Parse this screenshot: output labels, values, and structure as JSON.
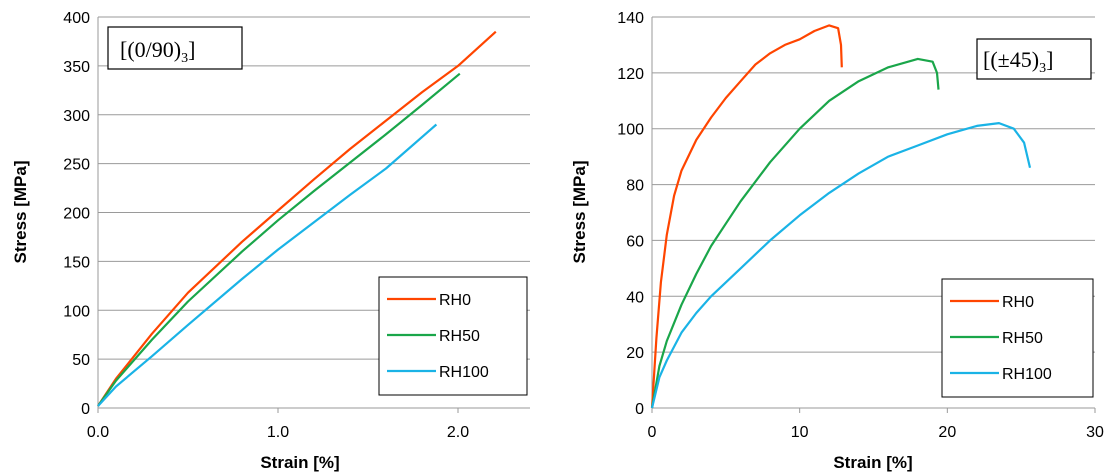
{
  "chart_data": [
    {
      "type": "line",
      "annotation": "[(0/90)",
      "annotation_sub": "3",
      "annotation_close": "]",
      "xlabel": "Strain [%]",
      "ylabel": "Stress [MPa]",
      "xlim": [
        0,
        2.4
      ],
      "ylim": [
        0,
        400
      ],
      "xticks": [
        "0.0",
        "1.0",
        "2.0"
      ],
      "xtick_values": [
        0,
        1,
        2
      ],
      "yticks": [
        "0",
        "50",
        "100",
        "150",
        "200",
        "250",
        "300",
        "350",
        "400"
      ],
      "ytick_values": [
        0,
        50,
        100,
        150,
        200,
        250,
        300,
        350,
        400
      ],
      "grid": "horizontal",
      "legend_position": "bottom-right",
      "series": [
        {
          "name": "RH0",
          "color": "#ff4500",
          "x": [
            0,
            0.1,
            0.3,
            0.5,
            0.8,
            1.0,
            1.2,
            1.4,
            1.6,
            1.8,
            2.0,
            2.21
          ],
          "y": [
            2,
            30,
            76,
            118,
            170,
            202,
            234,
            265,
            294,
            323,
            350,
            385
          ]
        },
        {
          "name": "RH50",
          "color": "#1aa64a",
          "x": [
            0,
            0.1,
            0.3,
            0.5,
            0.8,
            1.0,
            1.2,
            1.4,
            1.6,
            1.8,
            2.01
          ],
          "y": [
            2,
            28,
            70,
            109,
            160,
            192,
            222,
            251,
            280,
            310,
            342
          ]
        },
        {
          "name": "RH100",
          "color": "#1ab3e6",
          "x": [
            0,
            0.1,
            0.3,
            0.5,
            0.8,
            1.0,
            1.2,
            1.4,
            1.6,
            1.88
          ],
          "y": [
            2,
            22,
            53,
            85,
            132,
            162,
            190,
            218,
            245,
            290
          ]
        }
      ]
    },
    {
      "type": "line",
      "annotation": "[(±45)",
      "annotation_sub": "3",
      "annotation_close": "]",
      "xlabel": "Strain [%]",
      "ylabel": "Stress [MPa]",
      "xlim": [
        0,
        30
      ],
      "ylim": [
        0,
        140
      ],
      "xticks": [
        "0",
        "10",
        "20",
        "30"
      ],
      "xtick_values": [
        0,
        10,
        20,
        30
      ],
      "yticks": [
        "0",
        "20",
        "40",
        "60",
        "80",
        "100",
        "120",
        "140"
      ],
      "ytick_values": [
        0,
        20,
        40,
        60,
        80,
        100,
        120,
        140
      ],
      "grid": "horizontal",
      "legend_position": "bottom-right",
      "series": [
        {
          "name": "RH0",
          "color": "#ff4500",
          "x": [
            0,
            0.3,
            0.6,
            1.0,
            1.5,
            2.0,
            3.0,
            4.0,
            5.0,
            6.0,
            7.0,
            8.0,
            9.0,
            10.0,
            11.0,
            12.0,
            12.6,
            12.8,
            12.85
          ],
          "y": [
            0,
            25,
            45,
            62,
            76,
            85,
            96,
            104,
            111,
            117,
            123,
            127,
            130,
            132,
            135,
            137,
            136,
            130,
            122
          ]
        },
        {
          "name": "RH50",
          "color": "#1aa64a",
          "x": [
            0,
            0.5,
            1.0,
            2.0,
            3.0,
            4.0,
            5.0,
            6.0,
            8.0,
            10.0,
            12.0,
            14.0,
            16.0,
            18.0,
            19.0,
            19.3,
            19.4
          ],
          "y": [
            0,
            15,
            24,
            37,
            48,
            58,
            66,
            74,
            88,
            100,
            110,
            117,
            122,
            125,
            124,
            120,
            114
          ]
        },
        {
          "name": "RH100",
          "color": "#1ab3e6",
          "x": [
            0,
            0.5,
            1.0,
            2.0,
            3.0,
            4.0,
            6.0,
            8.0,
            10.0,
            12.0,
            14.0,
            16.0,
            18.0,
            20.0,
            22.0,
            23.5,
            24.5,
            25.2,
            25.6
          ],
          "y": [
            0,
            11,
            17,
            27,
            34,
            40,
            50,
            60,
            69,
            77,
            84,
            90,
            94,
            98,
            101,
            102,
            100,
            95,
            86
          ]
        }
      ]
    }
  ]
}
